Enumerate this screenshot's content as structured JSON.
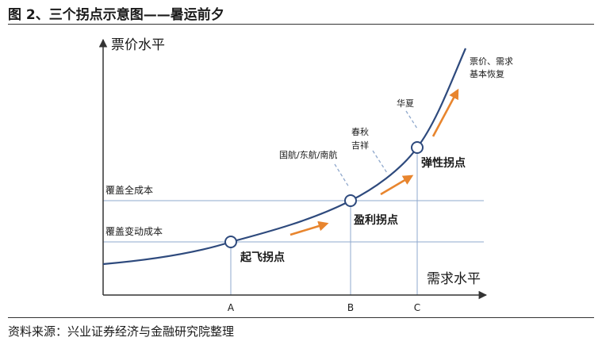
{
  "title": "图 2、三个拐点示意图——暑运前夕",
  "source": "资料来源：兴业证券经济与金融研究院整理",
  "axes": {
    "y_label": "票价水平",
    "x_label": "需求水平"
  },
  "levels": {
    "full_cost": "覆盖全成本",
    "variable_cost": "覆盖变动成本"
  },
  "x_ticks": [
    "A",
    "B",
    "C"
  ],
  "points": {
    "a": "起飞拐点",
    "b": "盈利拐点",
    "c": "弹性拐点"
  },
  "annotations": {
    "airlines": "国航/东航/南航",
    "spring_1": "春秋",
    "spring_2": "吉祥",
    "huaxia": "华夏",
    "recovery_1": "票价、需求",
    "recovery_2": "基本恢复"
  },
  "colors": {
    "curve": "#2e4a7d",
    "guide": "#8fa8cc",
    "arrow": "#e8852e",
    "axis": "#333333"
  }
}
